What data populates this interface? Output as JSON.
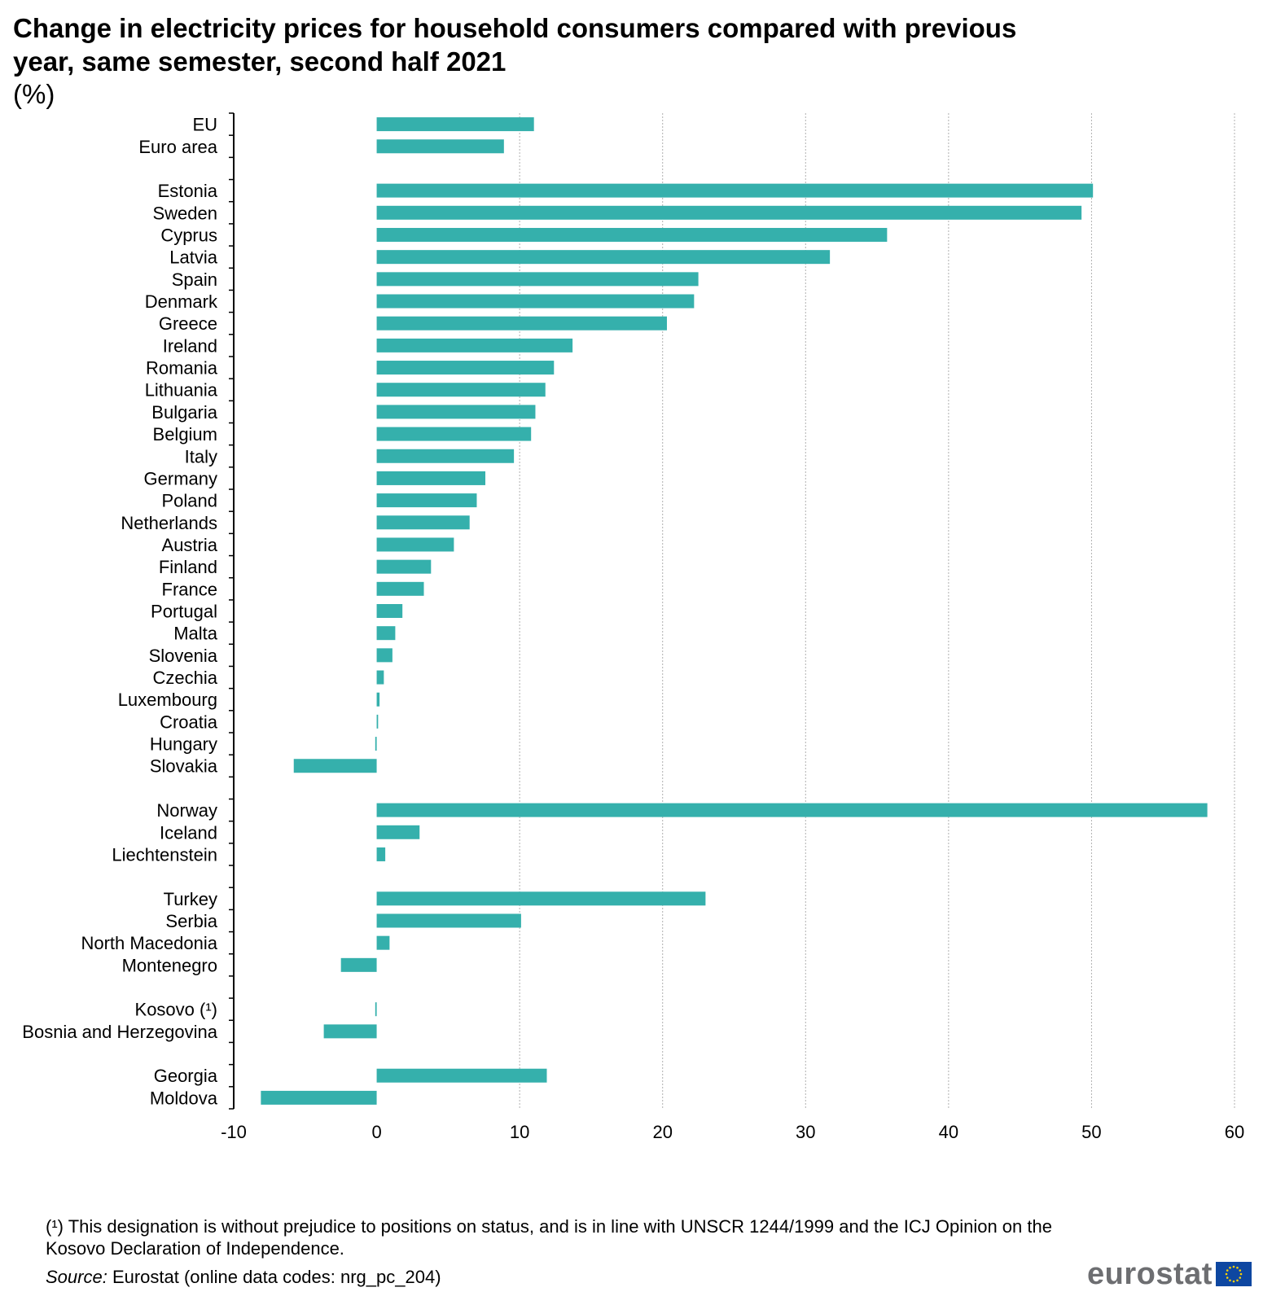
{
  "title": "Change in electricity prices for household consumers compared with previous year, same semester, second half 2021",
  "subtitle": "(%)",
  "footnote": "(¹) This designation is without prejudice to positions on status, and is in line with UNSCR 1244/1999 and the ICJ Opinion on the Kosovo Declaration of Independence.",
  "source_label": "Source:",
  "source_text": " Eurostat (online data codes: nrg_pc_204)",
  "logo": {
    "text": "eurostat",
    "icon": "eu-flag-icon"
  },
  "colors": {
    "bar": "#35b0ac",
    "grid": "#b0b0b0",
    "axis": "#000000",
    "flag": "#0e47a1",
    "stars": "#ffd200"
  },
  "chart_data": {
    "type": "bar",
    "orientation": "horizontal",
    "xlim": [
      -10,
      60
    ],
    "xticks": [
      -10,
      0,
      10,
      20,
      30,
      40,
      50,
      60
    ],
    "grid": true,
    "categories": [
      "EU",
      "Euro area",
      "",
      "Estonia",
      "Sweden",
      "Cyprus",
      "Latvia",
      "Spain",
      "Denmark",
      "Greece",
      "Ireland",
      "Romania",
      "Lithuania",
      "Bulgaria",
      "Belgium",
      "Italy",
      "Germany",
      "Poland",
      "Netherlands",
      "Austria",
      "Finland",
      "France",
      "Portugal",
      "Malta",
      "Slovenia",
      "Czechia",
      "Luxembourg",
      "Croatia",
      "Hungary",
      "Slovakia",
      "",
      "Norway",
      "Iceland",
      "Liechtenstein",
      "",
      "Turkey",
      "Serbia",
      "North Macedonia",
      "Montenegro",
      "",
      "Kosovo (¹)",
      "Bosnia and Herzegovina",
      "",
      "Georgia",
      "Moldova"
    ],
    "values": [
      11.0,
      8.9,
      null,
      50.1,
      49.3,
      35.7,
      31.7,
      22.5,
      22.2,
      20.3,
      13.7,
      12.4,
      11.8,
      11.1,
      10.8,
      9.6,
      7.6,
      7.0,
      6.5,
      5.4,
      3.8,
      3.3,
      1.8,
      1.3,
      1.1,
      0.5,
      0.2,
      0.1,
      -0.1,
      -5.8,
      null,
      58.1,
      3.0,
      0.6,
      null,
      23.0,
      10.1,
      0.9,
      -2.5,
      null,
      -0.1,
      -3.7,
      null,
      11.9,
      -8.1
    ]
  }
}
